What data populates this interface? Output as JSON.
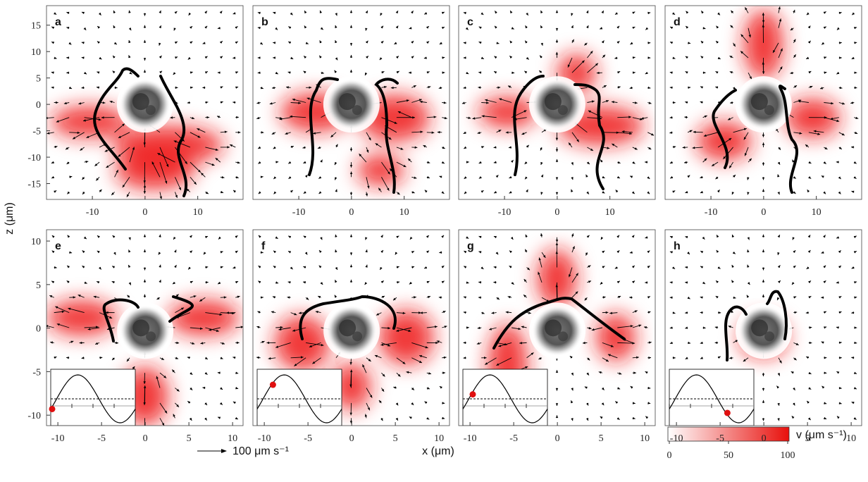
{
  "chart_data": [
    {
      "type": "quiver",
      "label": "a",
      "xlim": [
        -18.7,
        18.6
      ],
      "ylim": [
        -18,
        18.7
      ],
      "xticks": [
        -10,
        0,
        10
      ],
      "yticks": [
        -15,
        -10,
        -5,
        0,
        5,
        10,
        15
      ]
    },
    {
      "type": "quiver",
      "label": "b",
      "xlim": [
        -18.7,
        18.6
      ],
      "ylim": [
        -18,
        18.7
      ],
      "xticks": [
        -10,
        0,
        10
      ]
    },
    {
      "type": "quiver",
      "label": "c",
      "xlim": [
        -18.7,
        18.6
      ],
      "ylim": [
        -18,
        18.7
      ],
      "xticks": [
        -10,
        0,
        10
      ]
    },
    {
      "type": "quiver",
      "label": "d",
      "xlim": [
        -18.7,
        18.6
      ],
      "ylim": [
        -18,
        18.7
      ],
      "xticks": [
        -10,
        0,
        10
      ]
    },
    {
      "type": "quiver",
      "label": "e",
      "xlim": [
        -11.3,
        11.2
      ],
      "ylim": [
        -11.2,
        11.3
      ],
      "xticks": [
        -10,
        -5,
        0,
        5,
        10
      ],
      "yticks": [
        -10,
        -5,
        0,
        5,
        10
      ]
    },
    {
      "type": "quiver",
      "label": "f",
      "xlim": [
        -11.3,
        11.2
      ],
      "ylim": [
        -11.2,
        11.3
      ],
      "xticks": [
        -10,
        -5,
        0,
        5,
        10
      ]
    },
    {
      "type": "quiver",
      "label": "g",
      "xlim": [
        -11.3,
        11.2
      ],
      "ylim": [
        -11.2,
        11.3
      ],
      "xticks": [
        -10,
        -5,
        0,
        5,
        10
      ]
    },
    {
      "type": "quiver",
      "label": "h",
      "xlim": [
        -11.3,
        11.2
      ],
      "ylim": [
        -11.2,
        11.3
      ],
      "xticks": [
        -10,
        -5,
        0,
        5,
        10
      ]
    }
  ],
  "shared": {
    "xlabel": "x (μm)",
    "ylabel": "z (μm)",
    "scale_label": "100 μm s⁻¹",
    "colorbar": {
      "label": "v (μm s⁻¹)",
      "lim": [
        0,
        100
      ],
      "ticks": [
        0,
        50,
        100
      ]
    }
  }
}
